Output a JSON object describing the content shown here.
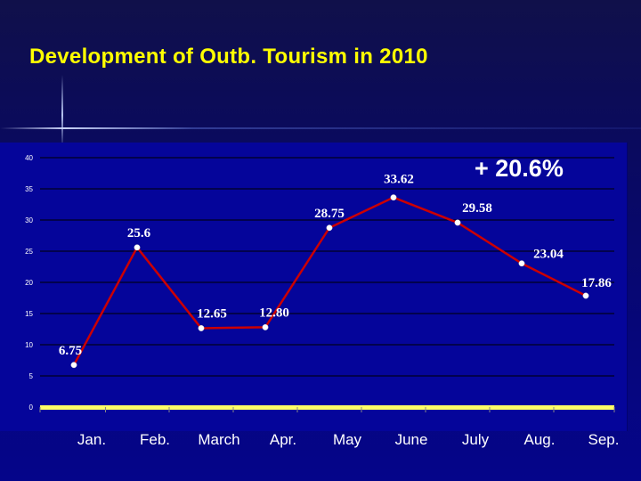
{
  "title": "Development of Outb. Tourism in 2010",
  "chart_data": {
    "type": "line",
    "categories": [
      "Jan.",
      "Feb.",
      "March",
      "Apr.",
      "May",
      "June",
      "July",
      "Aug.",
      "Sep."
    ],
    "values": [
      6.75,
      25.6,
      12.65,
      12.8,
      28.75,
      33.62,
      29.58,
      23.04,
      17.86
    ],
    "data_labels": [
      "6.75",
      "25.6",
      "12.65",
      "12.80",
      "28.75",
      "33.62",
      "29.58",
      "23.04",
      "17.86"
    ],
    "y_ticks": [
      "0",
      "5",
      "10",
      "15",
      "20",
      "25",
      "30",
      "35",
      "40"
    ],
    "ylim": [
      0,
      40
    ],
    "annotation": "+ 20.6%",
    "grid": true,
    "legend": "none",
    "colors": {
      "line": "#cc0000",
      "marker": "#ffffff",
      "grid": "#000000",
      "axis": "#ffff66",
      "plot_bg": "#05059a",
      "tick_text": "#ffffff",
      "data_label_text": "#ffffff",
      "title": "#ffff00"
    }
  }
}
